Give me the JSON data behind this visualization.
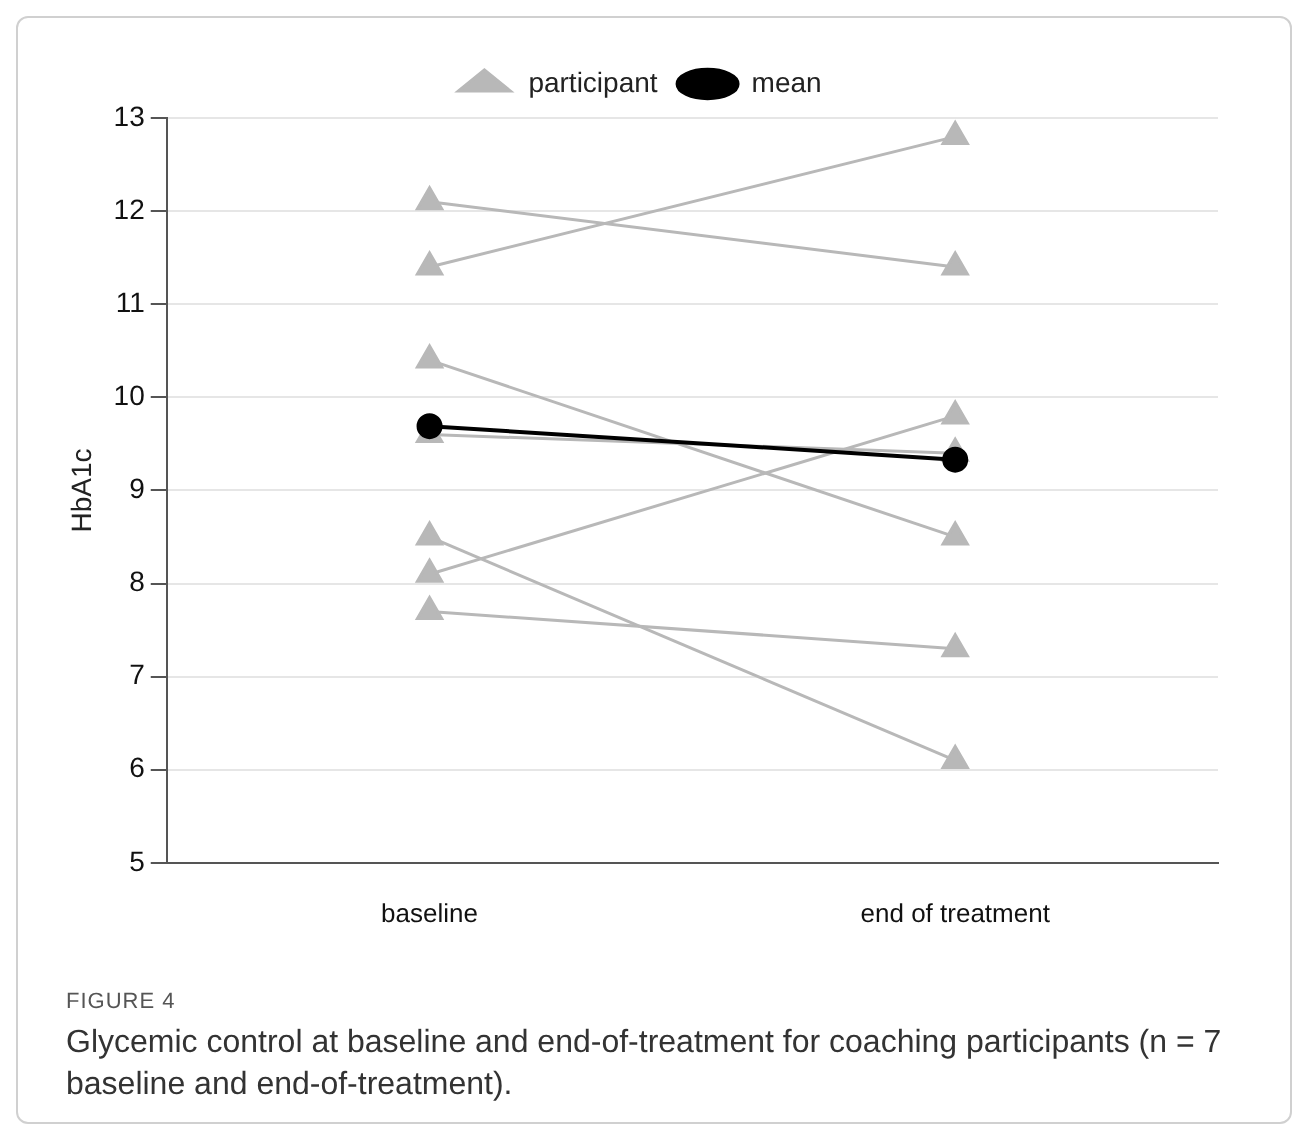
{
  "chart_data": {
    "type": "line",
    "ylabel": "HbA1c",
    "categories": [
      "baseline",
      "end of treatment"
    ],
    "ylim": [
      5,
      13
    ],
    "yticks": [
      5,
      6,
      7,
      8,
      9,
      10,
      11,
      12,
      13
    ],
    "grid": "y",
    "legend": "top",
    "line_style": "solid",
    "series": [
      {
        "name": "participant",
        "color": "#b8b8b8",
        "marker": "triangle",
        "values": [
          11.4,
          12.8
        ]
      },
      {
        "color": "#b8b8b8",
        "marker": "triangle",
        "values": [
          12.1,
          11.4
        ]
      },
      {
        "color": "#b8b8b8",
        "marker": "triangle",
        "values": [
          10.4,
          8.5
        ]
      },
      {
        "color": "#b8b8b8",
        "marker": "triangle",
        "values": [
          9.6,
          9.4
        ]
      },
      {
        "color": "#b8b8b8",
        "marker": "triangle",
        "values": [
          8.1,
          9.8
        ]
      },
      {
        "color": "#b8b8b8",
        "marker": "triangle",
        "values": [
          8.5,
          6.1
        ]
      },
      {
        "color": "#b8b8b8",
        "marker": "triangle",
        "values": [
          7.7,
          7.3
        ]
      },
      {
        "name": "mean",
        "color": "#000000",
        "marker": "circle",
        "values": [
          9.69,
          9.33
        ]
      }
    ],
    "annotations": [
      "FIGURE 4",
      "Glycemic control at baseline and end-of-treatment for coaching participants (n = 7 baseline and end-of-treatment)."
    ]
  }
}
